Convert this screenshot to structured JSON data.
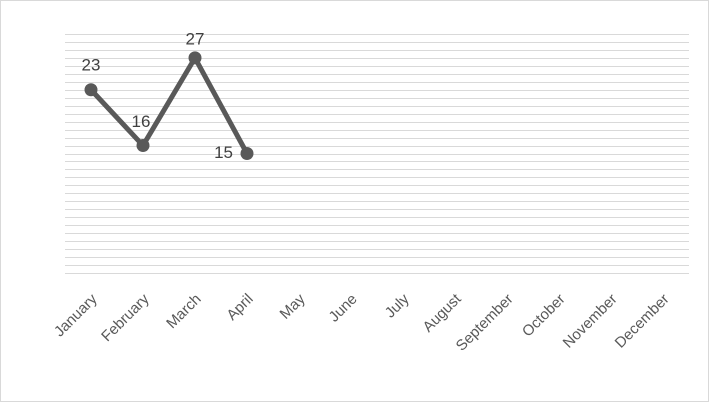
{
  "chart_data": {
    "type": "line",
    "categories": [
      "January",
      "February",
      "March",
      "April",
      "May",
      "June",
      "July",
      "August",
      "September",
      "October",
      "November",
      "December"
    ],
    "series": [
      {
        "values": [
          23,
          16,
          27,
          15,
          null,
          null,
          null,
          null,
          null,
          null,
          null,
          null
        ],
        "color": "#595959"
      }
    ],
    "data_labels": [
      "23",
      "16",
      "27",
      "15"
    ],
    "title": "",
    "xlabel": "",
    "ylabel": "",
    "ylim": [
      0,
      30
    ],
    "grid": true,
    "gridline_color": "#d9d9d9",
    "legend": "none"
  }
}
